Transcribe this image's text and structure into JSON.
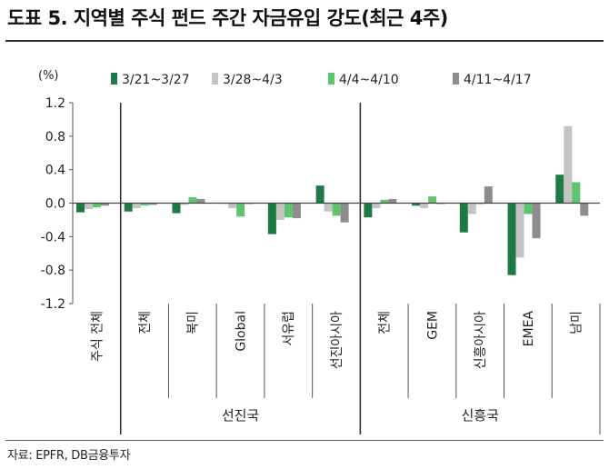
{
  "title": "도표 5. 지역별 주식 펀드 주간 자금유입 강도(최근 4주)",
  "source": "자료: EPFR, DB금융투자",
  "chart_data": {
    "type": "bar",
    "unit": "(%)",
    "ylim": [
      -1.2,
      1.2
    ],
    "yticks": [
      "1.2",
      "0.8",
      "0.4",
      "0.0",
      "-0.4",
      "-0.8",
      "-1.2"
    ],
    "legend_position": "top",
    "colors": [
      "#1e7a45",
      "#c4c4c4",
      "#5ec46e",
      "#8d8d8d"
    ],
    "categories": [
      "주식 전체",
      "전체",
      "북미",
      "Global",
      "서유럽",
      "선진아시아",
      "전체",
      "GEM",
      "신흥아시아",
      "EMEA",
      "남미"
    ],
    "groups": [
      {
        "label": "선진국",
        "categories": [
          "전체",
          "북미",
          "Global",
          "서유럽",
          "선진아시아"
        ]
      },
      {
        "label": "신흥국",
        "categories": [
          "전체",
          "GEM",
          "신흥아시아",
          "EMEA",
          "남미"
        ]
      }
    ],
    "series": [
      {
        "name": "3/21~3/27",
        "values": [
          -0.11,
          -0.1,
          -0.12,
          0.0,
          -0.37,
          0.21,
          -0.17,
          -0.03,
          -0.35,
          -0.86,
          0.34
        ]
      },
      {
        "name": "3/28~4/3",
        "values": [
          -0.07,
          -0.06,
          -0.02,
          -0.06,
          -0.2,
          -0.1,
          -0.06,
          -0.06,
          -0.13,
          -0.65,
          0.92
        ]
      },
      {
        "name": "4/4~4/10",
        "values": [
          -0.05,
          -0.03,
          0.07,
          -0.16,
          -0.17,
          -0.15,
          0.04,
          0.08,
          -0.01,
          -0.13,
          0.25
        ]
      },
      {
        "name": "4/11~4/17",
        "values": [
          -0.03,
          -0.02,
          0.05,
          -0.01,
          -0.18,
          -0.23,
          0.05,
          -0.01,
          0.2,
          -0.42,
          -0.15
        ]
      }
    ]
  }
}
